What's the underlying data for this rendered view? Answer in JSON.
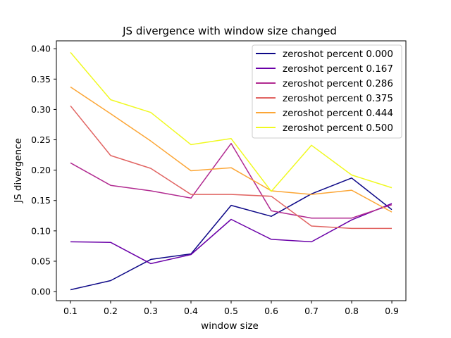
{
  "chart_data": {
    "type": "line",
    "title": "JS divergence with window size changed",
    "xlabel": "window size",
    "ylabel": "JS divergence",
    "x": [
      0.1,
      0.2,
      0.3,
      0.4,
      0.5,
      0.6,
      0.7,
      0.8,
      0.9
    ],
    "xticks": [
      "0.1",
      "0.2",
      "0.3",
      "0.4",
      "0.5",
      "0.6",
      "0.7",
      "0.8",
      "0.9"
    ],
    "yticks": [
      "0.00",
      "0.05",
      "0.10",
      "0.15",
      "0.20",
      "0.25",
      "0.30",
      "0.35",
      "0.40"
    ],
    "xlim": [
      0.065,
      0.935
    ],
    "ylim": [
      -0.015,
      0.413
    ],
    "grid": false,
    "legend_position": "top-right",
    "series": [
      {
        "name": "zeroshot percent 0.000",
        "color": "#0d0887",
        "values": [
          0.003,
          0.018,
          0.053,
          0.062,
          0.142,
          0.124,
          0.161,
          0.187,
          0.135
        ]
      },
      {
        "name": "zeroshot percent 0.167",
        "color": "#6a00a8",
        "values": [
          0.082,
          0.081,
          0.046,
          0.061,
          0.119,
          0.086,
          0.082,
          0.118,
          0.145
        ]
      },
      {
        "name": "zeroshot percent 0.286",
        "color": "#b12a90",
        "values": [
          0.212,
          0.175,
          0.166,
          0.154,
          0.244,
          0.133,
          0.121,
          0.121,
          0.143
        ]
      },
      {
        "name": "zeroshot percent 0.375",
        "color": "#e16462",
        "values": [
          0.306,
          0.224,
          0.203,
          0.16,
          0.16,
          0.157,
          0.108,
          0.104,
          0.104
        ]
      },
      {
        "name": "zeroshot percent 0.444",
        "color": "#fca636",
        "values": [
          0.337,
          0.293,
          0.248,
          0.199,
          0.204,
          0.166,
          0.16,
          0.167,
          0.131
        ]
      },
      {
        "name": "zeroshot percent 0.500",
        "color": "#f0f921",
        "values": [
          0.394,
          0.316,
          0.295,
          0.242,
          0.252,
          0.165,
          0.241,
          0.192,
          0.171
        ]
      }
    ]
  }
}
